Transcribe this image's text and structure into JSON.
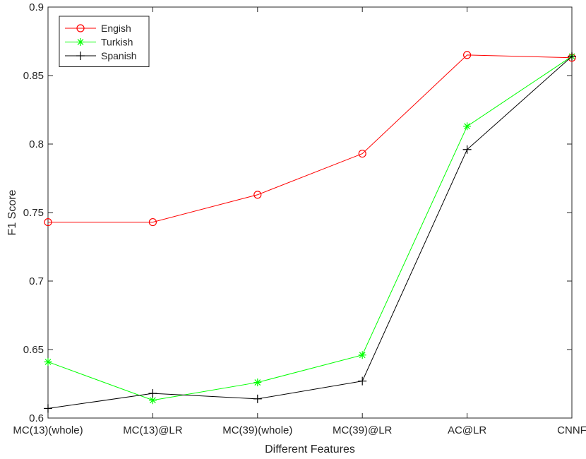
{
  "chart_data": {
    "type": "line",
    "title": "",
    "xlabel": "Different Features",
    "ylabel": "F1 Score",
    "categories": [
      "MC(13)(whole)",
      "MC(13)@LR",
      "MC(39)(whole)",
      "MC(39)@LR",
      "AC@LR",
      "CNNF"
    ],
    "ylim": [
      0.6,
      0.9
    ],
    "yticks": [
      "0.6",
      "0.65",
      "0.7",
      "0.75",
      "0.8",
      "0.85",
      "0.9"
    ],
    "grid": false,
    "legend_position": "top-left",
    "series": [
      {
        "name": "Engish",
        "color": "#ff0000",
        "marker": "circle",
        "values": [
          0.743,
          0.743,
          0.763,
          0.793,
          0.865,
          0.863
        ]
      },
      {
        "name": "Turkish",
        "color": "#00ff00",
        "marker": "asterisk",
        "values": [
          0.641,
          0.613,
          0.626,
          0.646,
          0.813,
          0.864
        ]
      },
      {
        "name": "Spanish",
        "color": "#000000",
        "marker": "plus",
        "values": [
          0.607,
          0.618,
          0.614,
          0.627,
          0.796,
          0.864
        ]
      }
    ]
  }
}
